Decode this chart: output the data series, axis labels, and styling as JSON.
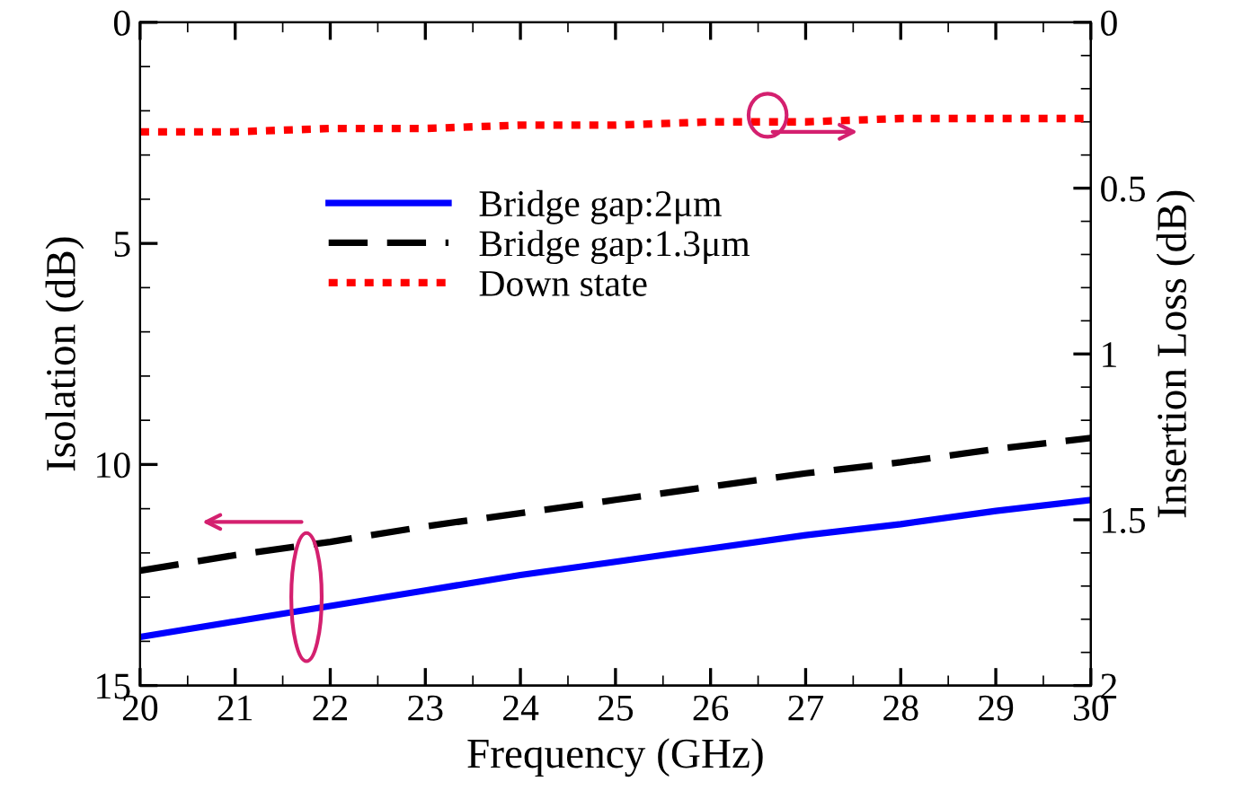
{
  "chart_data": {
    "type": "line",
    "xlabel": "Frequency (GHz)",
    "ylabel": "Isolation (dB)",
    "y2label": "Insertion Loss (dB)",
    "x": [
      20,
      21,
      22,
      23,
      24,
      25,
      26,
      27,
      28,
      29,
      30
    ],
    "xlim": [
      20,
      30
    ],
    "xticks": [
      20,
      21,
      22,
      23,
      24,
      25,
      26,
      27,
      28,
      29,
      30
    ],
    "ylim": [
      15,
      0
    ],
    "yticks": [
      0,
      5,
      10,
      15
    ],
    "y2lim": [
      2,
      0
    ],
    "y2ticks": [
      0,
      0.5,
      1,
      1.5,
      2
    ],
    "legend": "top",
    "grid": false,
    "series": [
      {
        "name": "Bridge gap:2μm",
        "color": "#0000ff",
        "line_style": "solid",
        "values": [
          13.9,
          13.55,
          13.2,
          12.85,
          12.5,
          12.2,
          11.9,
          11.6,
          11.35,
          11.05,
          10.8
        ]
      },
      {
        "name": "Bridge gap:1.3μm",
        "color": "#000000",
        "line_style": "dashed",
        "values": [
          12.4,
          12.05,
          11.75,
          11.4,
          11.1,
          10.8,
          10.5,
          10.2,
          9.95,
          9.65,
          9.4
        ]
      },
      {
        "name": "Down state",
        "color": "#ff0000",
        "line_style": "dotted",
        "axis": "y2",
        "values": [
          0.33,
          0.33,
          0.32,
          0.32,
          0.31,
          0.31,
          0.3,
          0.3,
          0.29,
          0.29,
          0.29
        ]
      }
    ]
  }
}
